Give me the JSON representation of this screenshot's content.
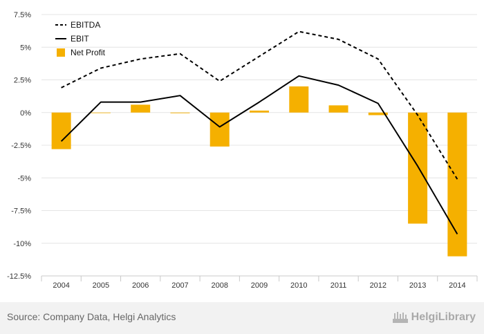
{
  "chart_data": {
    "type": "bar",
    "categories": [
      "2004",
      "2005",
      "2006",
      "2007",
      "2008",
      "2009",
      "2010",
      "2011",
      "2012",
      "2013",
      "2014"
    ],
    "series": [
      {
        "name": "EBITDA",
        "kind": "line",
        "style": "dashed",
        "color": "#000000",
        "values": [
          1.9,
          3.4,
          4.1,
          4.5,
          2.4,
          4.3,
          6.2,
          5.6,
          4.1,
          -0.2,
          -5.1
        ]
      },
      {
        "name": "EBIT",
        "kind": "line",
        "style": "solid",
        "color": "#000000",
        "values": [
          -2.2,
          0.8,
          0.8,
          1.3,
          -1.1,
          0.8,
          2.8,
          2.1,
          0.7,
          -4.1,
          -9.3
        ]
      },
      {
        "name": "Net Profit",
        "kind": "bar",
        "color": "#f5b000",
        "values": [
          -2.8,
          0.0,
          0.6,
          -0.05,
          -2.6,
          0.15,
          2.0,
          0.55,
          -0.2,
          -8.5,
          -11.0
        ]
      }
    ],
    "yticks": [
      "7.5%",
      "5%",
      "2.5%",
      "0%",
      "-2.5%",
      "-5%",
      "-7.5%",
      "-10%",
      "-12.5%"
    ],
    "ylim": [
      -12.5,
      7.5
    ],
    "grid": true,
    "legend_position": "top-left"
  },
  "footer": {
    "source": "Source: Company Data, Helgi Analytics",
    "brand": "HelgiLibrary"
  }
}
